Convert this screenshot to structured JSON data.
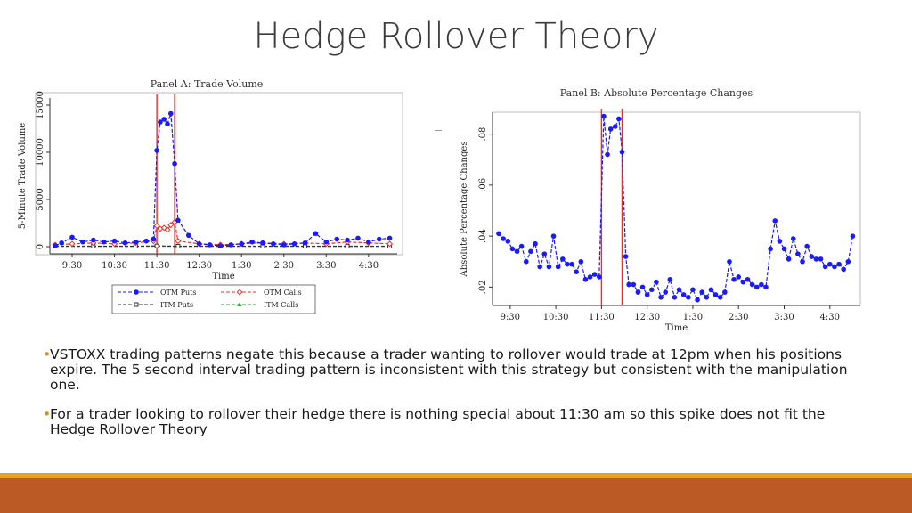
{
  "title": "Hedge Rollover Theory",
  "bullets": [
    "VSTOXX trading patterns negate this because a trader wanting to rollover would trade at 12pm when his positions expire. The 5 second interval trading pattern is inconsistent with this strategy but consistent with the manipulation one.",
    "For a trader looking to rollover their hedge there is nothing special about 11:30 am so this spike does not fit the Hedge Rollover Theory"
  ],
  "colors": {
    "otm_puts": "#1a1aff",
    "otm_calls": "#e8302a",
    "itm_puts": "#333333",
    "itm_calls": "#2aa02a",
    "vline": "#e8302a",
    "footer_bar": "#bb5a25",
    "footer_line": "#e8a21f",
    "bullet_dot": "#e08a1e"
  },
  "chart_data": [
    {
      "type": "line",
      "title": "Panel A: Trade Volume",
      "xlabel": "Time",
      "ylabel": "5-Minute Trade Volume",
      "xticks": [
        "9:30",
        "10:30",
        "11:30",
        "12:30",
        "1:30",
        "2:30",
        "3:30",
        "4:30"
      ],
      "yticks": [
        "0",
        "5000",
        "10000",
        "15000"
      ],
      "ylim": [
        0,
        15000
      ],
      "x_unit": "hours after 9:00",
      "xlim": [
        0.1,
        8.05
      ],
      "grid": false,
      "legend_position": "bottom",
      "vertical_lines": [
        2.5,
        2.92
      ],
      "series": [
        {
          "name": "OTM Puts",
          "style": "dashed, filled circles",
          "x": [
            0.1,
            0.25,
            0.5,
            0.75,
            1.0,
            1.25,
            1.5,
            1.75,
            2.0,
            2.25,
            2.42,
            2.5,
            2.58,
            2.67,
            2.75,
            2.83,
            2.92,
            3.0,
            3.25,
            3.5,
            3.75,
            4.0,
            4.25,
            4.5,
            4.75,
            5.0,
            5.25,
            5.5,
            5.75,
            6.0,
            6.25,
            6.5,
            6.75,
            7.0,
            7.25,
            7.5,
            7.75,
            8.0
          ],
          "values": [
            100,
            400,
            1000,
            500,
            700,
            500,
            600,
            400,
            500,
            600,
            800,
            10200,
            13200,
            13500,
            13000,
            14100,
            8800,
            2800,
            1200,
            300,
            200,
            100,
            200,
            300,
            500,
            400,
            300,
            200,
            300,
            400,
            1400,
            500,
            800,
            700,
            900,
            500,
            800,
            900
          ]
        },
        {
          "name": "OTM Calls",
          "style": "dashed, hollow diamonds",
          "x": [
            0.1,
            0.5,
            1.0,
            1.5,
            2.0,
            2.42,
            2.5,
            2.58,
            2.67,
            2.75,
            2.83,
            2.92,
            3.0,
            3.5,
            4.0,
            4.5,
            5.0,
            5.5,
            6.0,
            6.5,
            7.0,
            7.5,
            8.0
          ],
          "values": [
            200,
            300,
            400,
            300,
            400,
            600,
            2200,
            1900,
            2000,
            1800,
            2300,
            2600,
            600,
            300,
            200,
            300,
            400,
            300,
            400,
            300,
            500,
            400,
            300
          ]
        },
        {
          "name": "ITM Puts",
          "style": "dashed, hollow squares",
          "x": [
            0.1,
            1.0,
            2.0,
            2.5,
            3.0,
            4.0,
            5.0,
            6.0,
            7.0,
            8.0
          ],
          "values": [
            50,
            50,
            50,
            80,
            50,
            50,
            50,
            50,
            50,
            50
          ]
        },
        {
          "name": "ITM Calls",
          "style": "dashed, triangles",
          "x": [
            0.1,
            1.0,
            2.0,
            2.5,
            3.0,
            4.0,
            5.0,
            6.0,
            7.0,
            8.0
          ],
          "values": [
            30,
            30,
            30,
            50,
            30,
            30,
            30,
            30,
            30,
            30
          ]
        }
      ]
    },
    {
      "type": "line",
      "title": "Panel B: Absolute Percentage Changes",
      "xlabel": "Time",
      "ylabel": "Absolute Percentage Changes",
      "xticks": [
        "9:30",
        "10:30",
        "11:30",
        "12:30",
        "1:30",
        "2:30",
        "3:30",
        "4:30"
      ],
      "yticks": [
        ".02",
        ".04",
        ".06",
        ".08"
      ],
      "ylim": [
        0.01,
        0.09
      ],
      "x_unit": "hours after 9:00",
      "xlim": [
        0.25,
        8.05
      ],
      "grid": false,
      "legend_position": "none",
      "vertical_lines": [
        2.5,
        2.95
      ],
      "series": [
        {
          "name": "",
          "style": "dashed, filled circles",
          "x": [
            0.25,
            0.35,
            0.45,
            0.55,
            0.65,
            0.75,
            0.85,
            0.95,
            1.05,
            1.15,
            1.25,
            1.35,
            1.45,
            1.55,
            1.65,
            1.75,
            1.85,
            1.95,
            2.05,
            2.15,
            2.25,
            2.35,
            2.45,
            2.55,
            2.63,
            2.7,
            2.8,
            2.88,
            2.95,
            3.03,
            3.1,
            3.2,
            3.3,
            3.4,
            3.5,
            3.6,
            3.7,
            3.8,
            3.9,
            4.0,
            4.1,
            4.2,
            4.3,
            4.4,
            4.5,
            4.6,
            4.7,
            4.8,
            4.9,
            5.0,
            5.1,
            5.2,
            5.3,
            5.4,
            5.5,
            5.6,
            5.7,
            5.8,
            5.9,
            6.0,
            6.1,
            6.2,
            6.3,
            6.4,
            6.5,
            6.6,
            6.7,
            6.8,
            6.9,
            7.0,
            7.1,
            7.2,
            7.3,
            7.4,
            7.5,
            7.6,
            7.7,
            7.8,
            7.9,
            8.0
          ],
          "values": [
            0.041,
            0.039,
            0.038,
            0.035,
            0.034,
            0.036,
            0.03,
            0.034,
            0.037,
            0.028,
            0.033,
            0.028,
            0.04,
            0.028,
            0.031,
            0.029,
            0.029,
            0.026,
            0.03,
            0.023,
            0.024,
            0.025,
            0.024,
            0.087,
            0.072,
            0.082,
            0.083,
            0.086,
            0.073,
            0.032,
            0.021,
            0.021,
            0.018,
            0.02,
            0.017,
            0.019,
            0.022,
            0.016,
            0.018,
            0.023,
            0.016,
            0.019,
            0.017,
            0.016,
            0.019,
            0.015,
            0.018,
            0.016,
            0.019,
            0.017,
            0.016,
            0.018,
            0.03,
            0.023,
            0.024,
            0.022,
            0.023,
            0.021,
            0.02,
            0.021,
            0.02,
            0.035,
            0.046,
            0.038,
            0.035,
            0.031,
            0.039,
            0.033,
            0.03,
            0.036,
            0.032,
            0.031,
            0.031,
            0.028,
            0.029,
            0.028,
            0.029,
            0.027,
            0.03,
            0.04
          ]
        }
      ]
    }
  ]
}
